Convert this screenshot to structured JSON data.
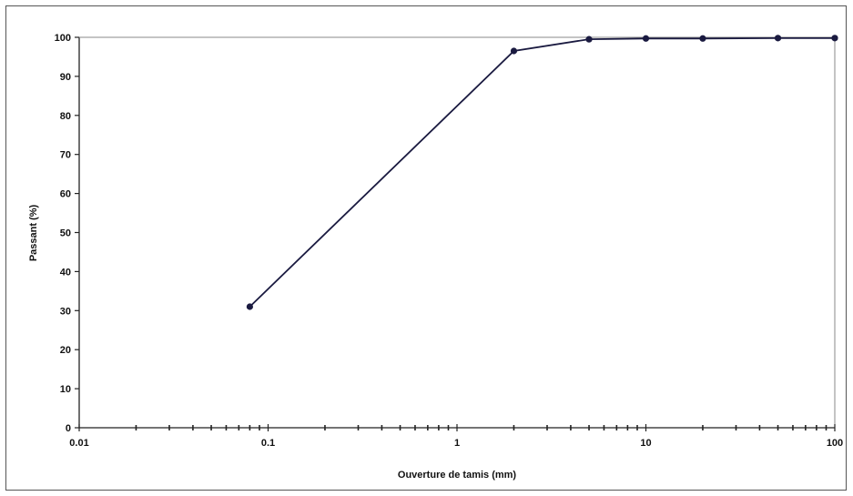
{
  "chart_data": {
    "type": "line",
    "title": "",
    "xlabel": "Ouverture de tamis (mm)",
    "ylabel": "Passant (%)",
    "x_scale": "log",
    "xlim": [
      0.01,
      100
    ],
    "ylim": [
      0,
      100
    ],
    "x_ticks": [
      "0.01",
      "0.1",
      "1",
      "10",
      "100"
    ],
    "y_ticks": [
      "0",
      "10",
      "20",
      "30",
      "40",
      "50",
      "60",
      "70",
      "80",
      "90",
      "100"
    ],
    "grid": false,
    "legend": "none",
    "series": [
      {
        "x": [
          0.08,
          2,
          5,
          10,
          20,
          50,
          100
        ],
        "y": [
          31,
          96.5,
          99.5,
          99.7,
          99.7,
          99.8,
          99.8
        ]
      }
    ],
    "colors": {
      "line": "#1a1a40",
      "marker": "#1a1a40",
      "axis": "#222222"
    }
  }
}
